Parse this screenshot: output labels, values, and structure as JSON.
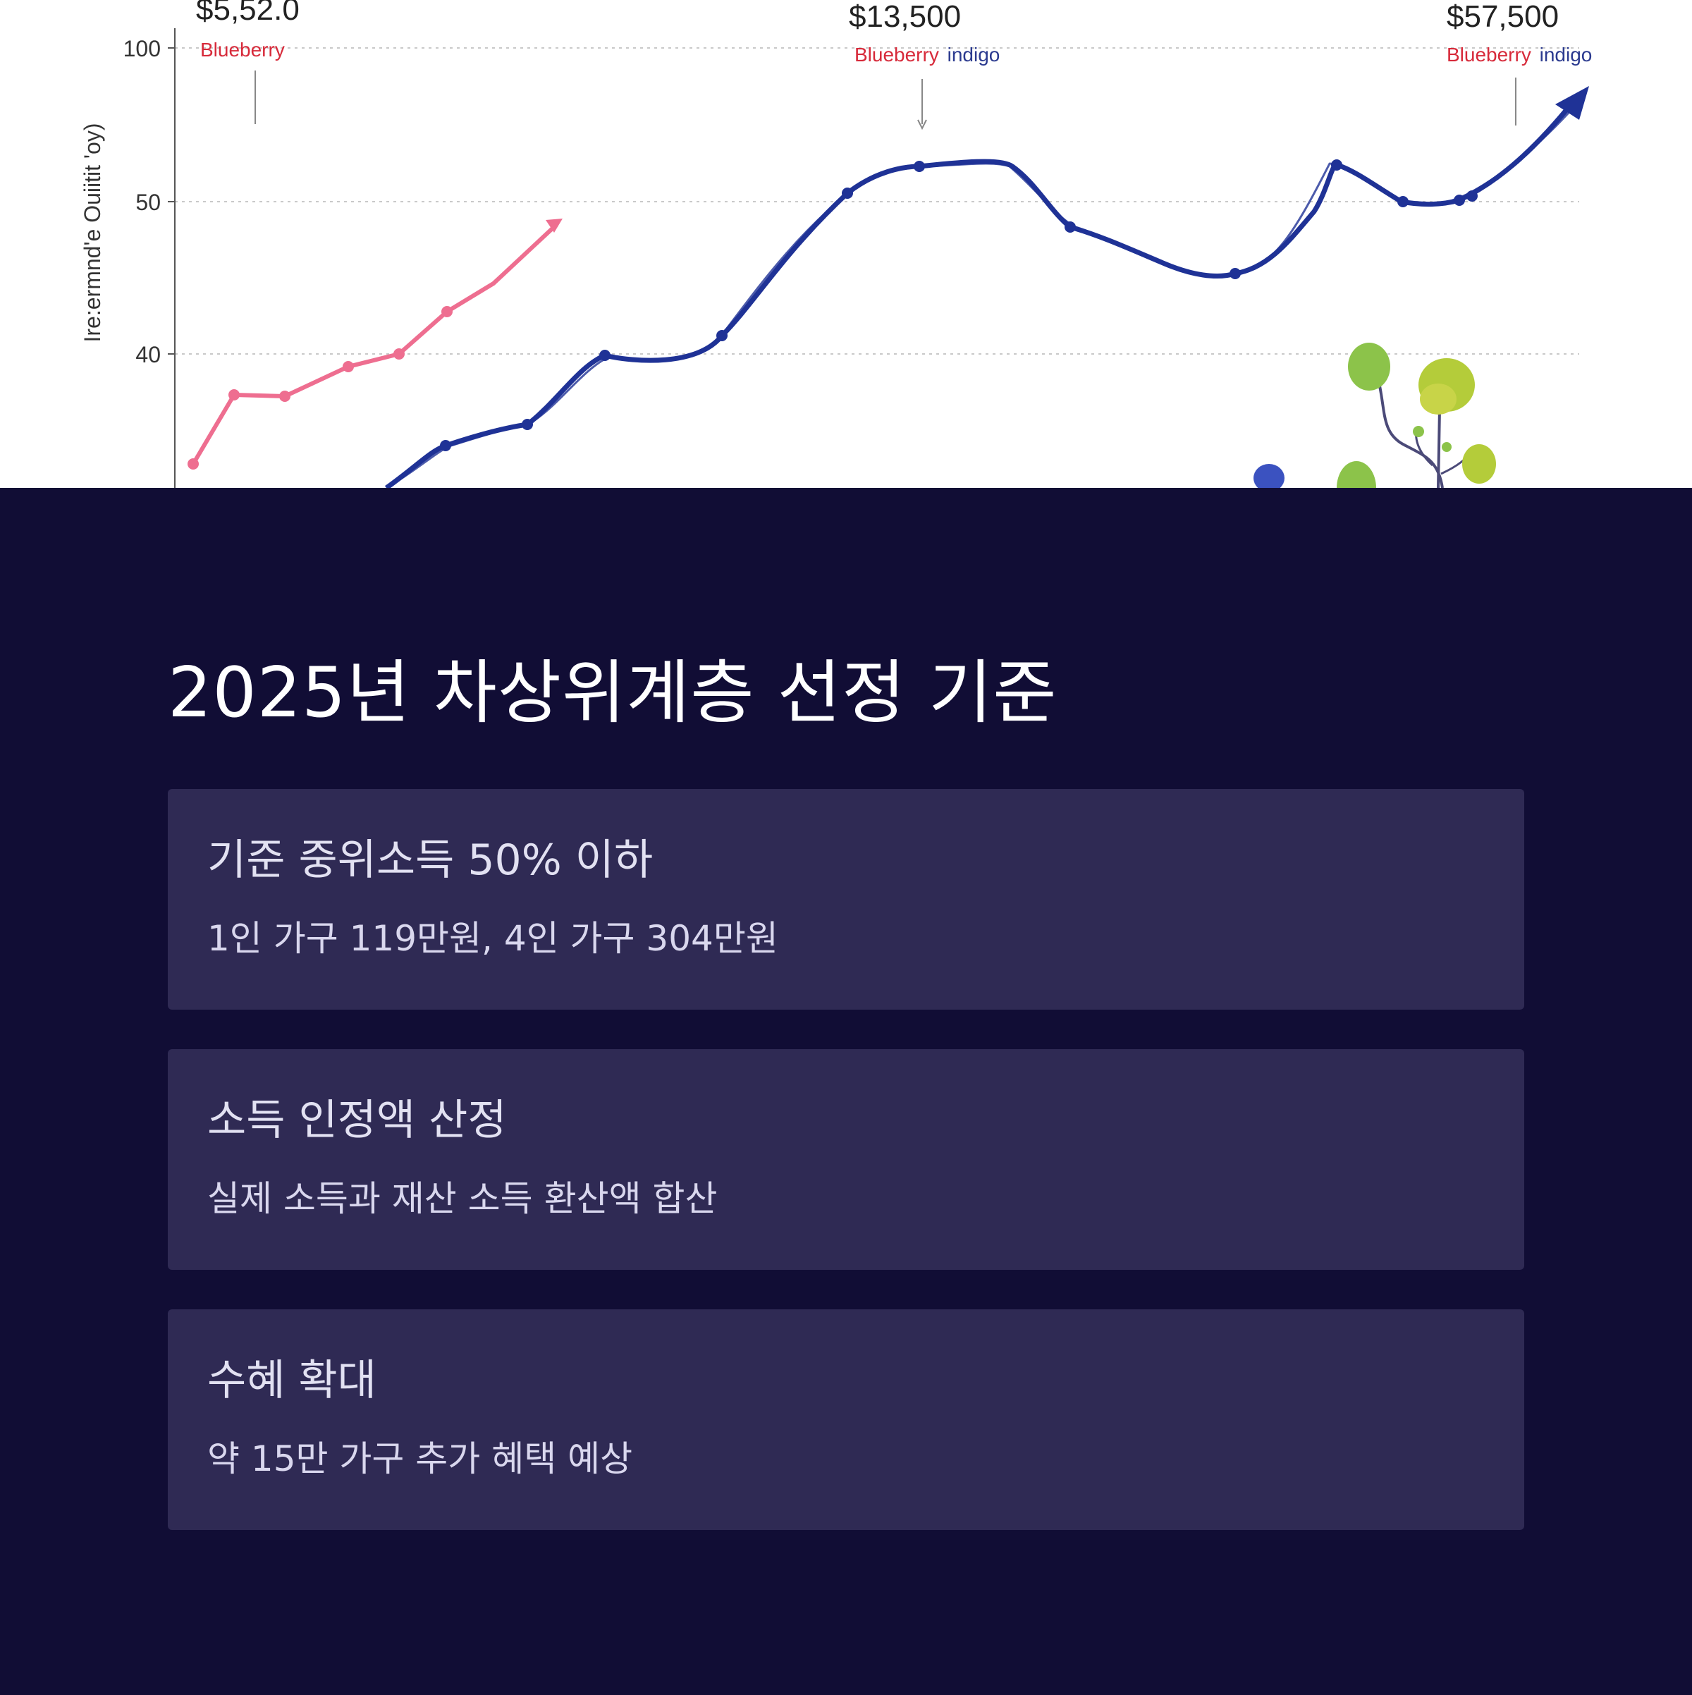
{
  "chart": {
    "y_axis_label": "Ire:ermnd'e Ouiitit 'oy)",
    "y_ticks": [
      "100",
      "50",
      "40"
    ],
    "annotations": [
      {
        "value": "$5,52.0",
        "label_red": "Blueberry",
        "label_blue": ""
      },
      {
        "value": "$13,500",
        "label_red": "Blueberry",
        "label_blue": "indigo"
      },
      {
        "value": "$57,500",
        "label_red": "Blueberry",
        "label_blue": "indigo"
      }
    ],
    "colors": {
      "pink_series": "#ee6e90",
      "blue_series": "#1f3296",
      "red_label": "#d72a3a",
      "blue_label": "#2b3a8f"
    }
  },
  "main": {
    "title": "2025년 차상위계층 선정 기준",
    "cards": [
      {
        "heading": "기준 중위소득 50% 이하",
        "description": "1인 가구 119만원, 4인 가구 304만원"
      },
      {
        "heading": "소득 인정액 산정",
        "description": "실제 소득과 재산 소득 환산액 합산"
      },
      {
        "heading": "수혜 확대",
        "description": "약 15만 가구 추가 혜택 예상"
      }
    ]
  },
  "colors": {
    "background": "#110d35",
    "card": "#2f2a54",
    "title": "#ffffff"
  }
}
